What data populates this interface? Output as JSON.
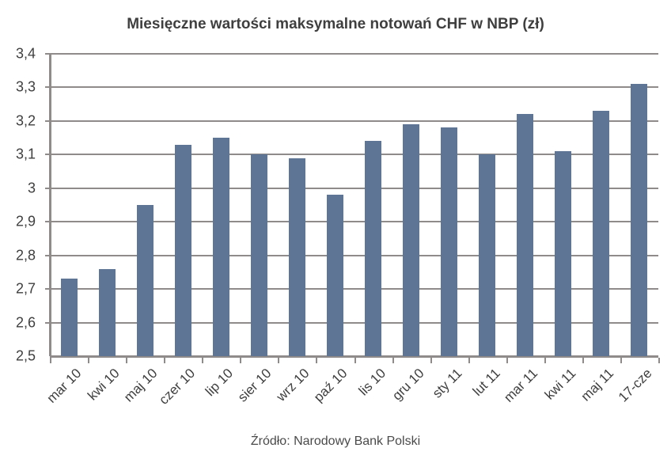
{
  "chart_data": {
    "type": "bar",
    "title": "Miesięczne wartości maksymalne notowań CHF w NBP (zł)",
    "xlabel": "",
    "ylabel": "",
    "categories": [
      "mar 10",
      "kwi 10",
      "maj 10",
      "czer 10",
      "lip 10",
      "sier 10",
      "wrz 10",
      "paź 10",
      "lis 10",
      "gru 10",
      "sty 11",
      "lut 11",
      "mar 11",
      "kwi 11",
      "maj 11",
      "17-cze"
    ],
    "values": [
      2.73,
      2.76,
      2.95,
      3.13,
      3.15,
      3.1,
      3.09,
      2.98,
      3.14,
      3.19,
      3.18,
      3.1,
      3.22,
      3.11,
      3.23,
      3.31
    ],
    "ylim": [
      2.5,
      3.4
    ],
    "yticks": [
      "2,5",
      "2,6",
      "2,7",
      "2,8",
      "2,9",
      "3",
      "3,1",
      "3,2",
      "3,3",
      "3,4"
    ],
    "grid": true,
    "legend": null,
    "bar_color": "#5e7596",
    "annotation": "Źródło: Narodowy Bank Polski"
  },
  "title": "Miesięczne wartości maksymalne notowań CHF w NBP (zł)",
  "source": "Źródło: Narodowy Bank Polski"
}
